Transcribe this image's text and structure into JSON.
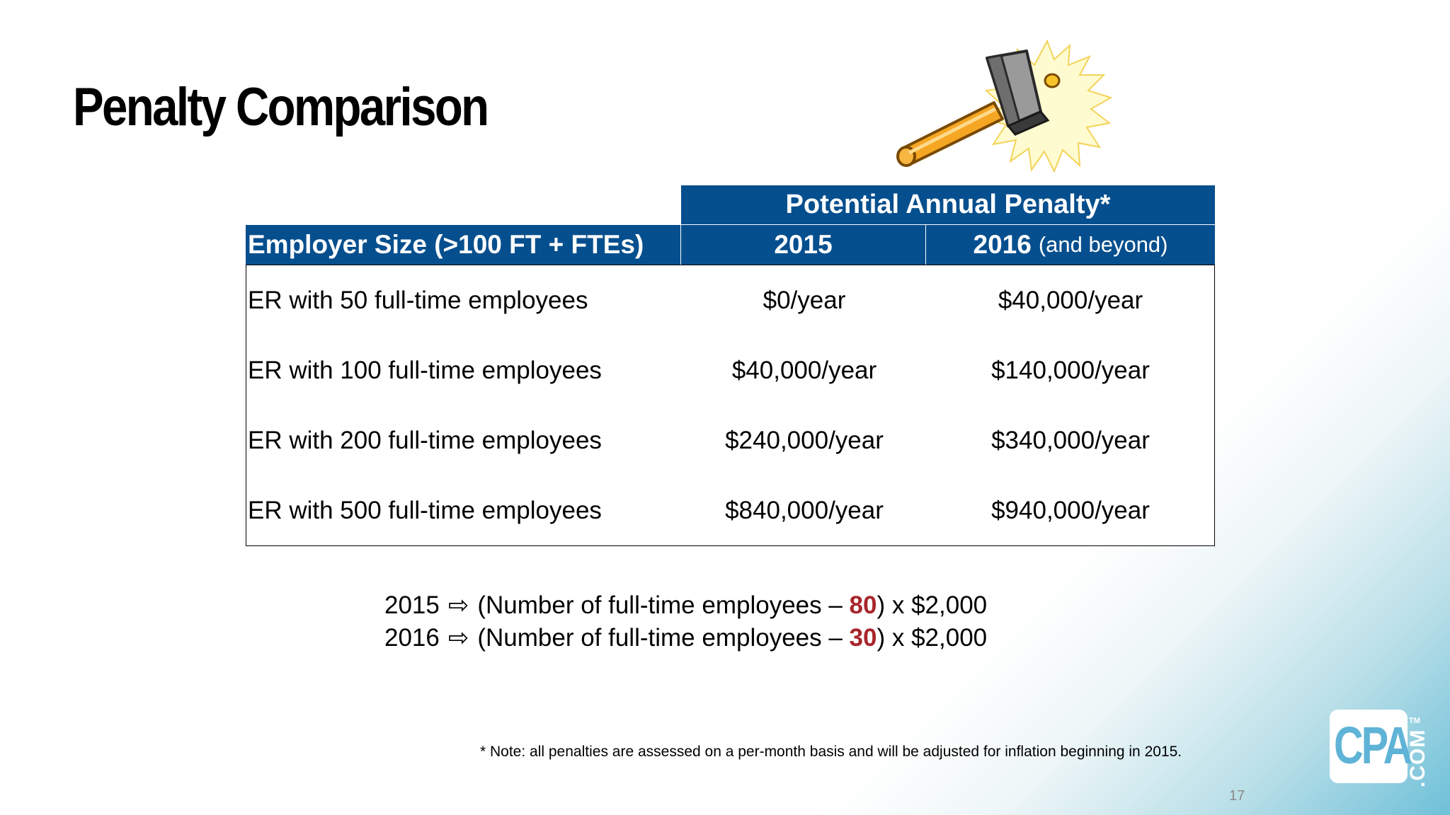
{
  "slide": {
    "title": "Penalty Comparison",
    "page_number": "17"
  },
  "table": {
    "group_header": "Potential Annual Penalty*",
    "col1_header": "Employer Size (>100 FT + FTEs)",
    "col2_header": "2015",
    "col3_header": "2016",
    "col3_subheader": "(and beyond)",
    "rows": [
      {
        "size": "ER with 50 full-time employees",
        "y2015": "$0/year",
        "y2016": "$40,000/year"
      },
      {
        "size": "ER with 100 full-time employees",
        "y2015": "$40,000/year",
        "y2016": "$140,000/year"
      },
      {
        "size": "ER with 200 full-time employees",
        "y2015": "$240,000/year",
        "y2016": "$340,000/year"
      },
      {
        "size": "ER with 500 full-time employees",
        "y2015": "$840,000/year",
        "y2016": "$940,000/year"
      }
    ]
  },
  "formulas": [
    {
      "year": "2015",
      "arrow": "⇨",
      "prefix": "(Number of full-time employees – ",
      "value": "80",
      "suffix": ") x $2,000"
    },
    {
      "year": "2016",
      "arrow": "⇨",
      "prefix": "(Number of full-time employees – ",
      "value": "30",
      "suffix": ") x $2,000"
    }
  ],
  "note": "*  Note:  all penalties are assessed on a per-month basis and will be adjusted for inflation beginning in 2015.",
  "logo": {
    "text": "CPA",
    "suffix": ".COM",
    "tm": "TM"
  },
  "colors": {
    "header_bg": "#064f8e",
    "highlight": "#a8262c",
    "logo_blue": "#5fb3d6"
  },
  "icons": {
    "hammer": "hammer-strike-icon"
  }
}
